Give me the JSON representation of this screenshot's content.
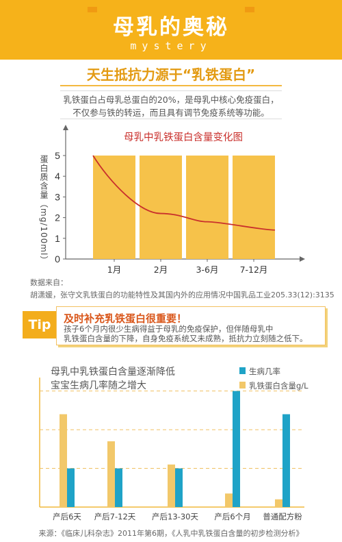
{
  "header": {
    "title": "母乳的奥秘",
    "subtitle": "mystery"
  },
  "section": {
    "title": "天生抵抗力源于“乳铁蛋白”"
  },
  "note": {
    "line1": "乳铁蛋白占母乳总蛋白的20%，是母乳中核心免疫蛋白，",
    "line2": "不仅参与铁的转运，而且具有调节免疫系统等功能。"
  },
  "chart_data": [
    {
      "type": "bar",
      "title": "母乳中乳铁蛋白含量变化图",
      "ylabel": "蛋白质含量（mg/100ml）",
      "categories": [
        "1月",
        "2月",
        "3-6月",
        "7-12月"
      ],
      "values": [
        5,
        5,
        5,
        5
      ],
      "line": [
        5.0,
        2.2,
        1.8,
        1.4
      ],
      "ylim": [
        0,
        5
      ],
      "yticks": [
        "0",
        "1",
        "2",
        "3",
        "4",
        "5"
      ],
      "colors": {
        "bar": "#f6c24a",
        "line": "#c9302c"
      }
    },
    {
      "type": "bar",
      "title": "母乳中乳铁蛋白含量逐渐降低",
      "subtitle": "宝宝生病几率随之增大",
      "categories": [
        "产后6天",
        "产后7-12天",
        "产后13-30天",
        "产后6个月",
        "普通配方粉"
      ],
      "series": [
        {
          "name": "生病几率",
          "values": [
            1,
            1,
            1,
            3,
            2.4
          ],
          "color": "#1fa3c7"
        },
        {
          "name": "乳铁蛋白含量g/L",
          "values": [
            2.4,
            1.7,
            1.1,
            0.35,
            0.2
          ],
          "color": "#f2c86a"
        }
      ],
      "ylim": [
        0,
        3.1
      ],
      "legend": "top-right"
    }
  ],
  "source1": {
    "label": "数据来自：",
    "text": "胡潇媛，张守文乳铁蛋白的功能特性及其国内外的应用情况中国乳品工业205.33(12):3135"
  },
  "tip": {
    "badge": "Tip",
    "heading": "及时补充乳铁蛋白很重要！",
    "line1": "孩子6个月内很少生病得益于母乳的免疫保护，但伴随母乳中",
    "line2": "乳铁蛋白含量的下降，自身免疫系统又未成熟，抵抗力立刻随之低下。"
  },
  "source2": {
    "text": "来源：《临床儿科杂志》2011年第6期，《人乳中乳铁蛋白含量的初步检测分析》"
  }
}
